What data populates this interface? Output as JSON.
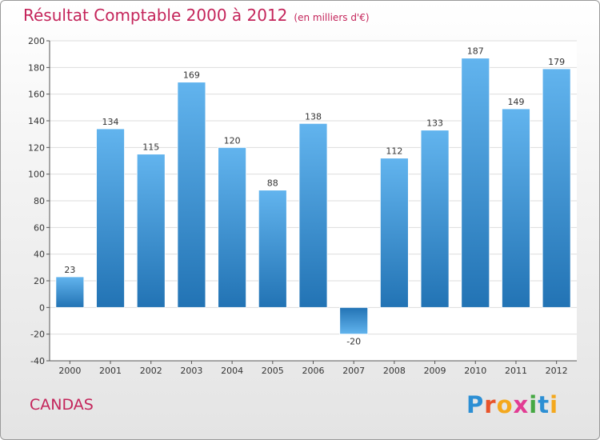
{
  "header": {
    "title": "Résultat Comptable 2000 à 2012",
    "unit": "(en milliers d'€)"
  },
  "commune": "CANDAS",
  "logo": {
    "text": "Proxiti",
    "letters": [
      "P",
      "r",
      "o",
      "x",
      "i",
      "t",
      "i"
    ],
    "colors": [
      "#2c8fd4",
      "#e8542b",
      "#f4a81d",
      "#e23c93",
      "#45a843",
      "#2c8fd4",
      "#f4a81d"
    ]
  },
  "chart_data": {
    "type": "bar",
    "title": "Résultat Comptable 2000 à 2012",
    "xlabel": "",
    "ylabel": "",
    "categories": [
      "2000",
      "2001",
      "2002",
      "2003",
      "2004",
      "2005",
      "2006",
      "2007",
      "2008",
      "2009",
      "2010",
      "2011",
      "2012"
    ],
    "values": [
      23,
      134,
      115,
      169,
      120,
      88,
      138,
      -20,
      112,
      133,
      187,
      149,
      179
    ],
    "ylim": [
      -40,
      200
    ],
    "yticks": [
      -40,
      -20,
      0,
      20,
      40,
      60,
      80,
      100,
      120,
      140,
      160,
      180,
      200
    ],
    "grid": true,
    "colors": {
      "bar_light": "#62b4ee",
      "bar_dark": "#2273b4",
      "grid": "#dddddd"
    }
  }
}
